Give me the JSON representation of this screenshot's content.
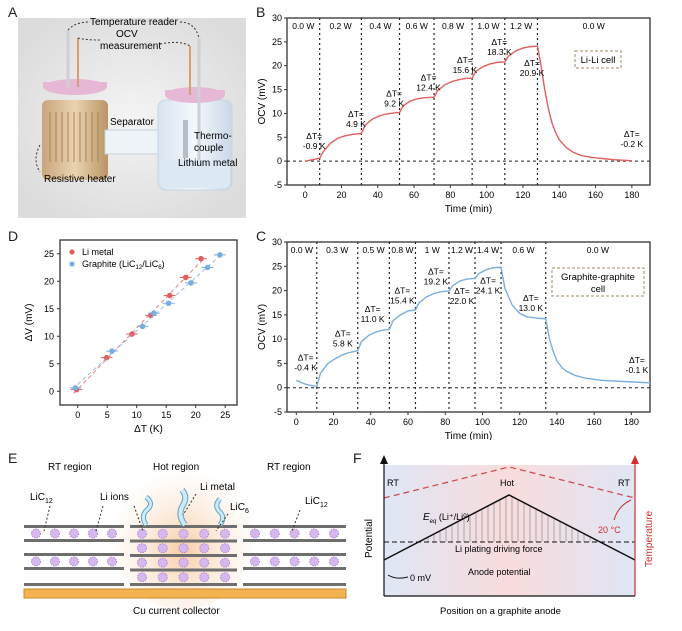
{
  "panels": {
    "A": {
      "letter": "A",
      "labels": {
        "temperature_reader": "Temperature reader",
        "ocv": "OCV",
        "measurement": "measurement",
        "separator": "Separator",
        "thermo": "Thermo-",
        "couple": "couple",
        "lithium_metal": "Lithium metal",
        "resistive_heater": "Resistive heater"
      }
    },
    "B": {
      "letter": "B"
    },
    "C": {
      "letter": "C"
    },
    "D": {
      "letter": "D"
    },
    "E": {
      "letter": "E",
      "labels": {
        "rt_left": "RT region",
        "hot": "Hot region",
        "rt_right": "RT region",
        "lic12_left": "LiC",
        "lic12_left_sub": "12",
        "li_ions": "Li ions",
        "li_metal": "Li metal",
        "lic6": "LiC",
        "lic6_sub": "6",
        "lic12_right": "LiC",
        "lic12_right_sub": "12",
        "collector": "Cu current collector"
      }
    },
    "F": {
      "letter": "F",
      "labels": {
        "rt_left": "RT",
        "hot": "Hot",
        "rt_right": "RT",
        "eeq": "E",
        "eeq_sub": "eq",
        "eeq_rest": " (Li⁺/Li⁰)",
        "driving_force": "Li plating driving force",
        "anode_potential": "Anode potential",
        "zero_mv": "0 mV",
        "twenty_c": "20 °C",
        "ylabel_left": "Potential",
        "ylabel_right": "Temperature",
        "xlabel": "Position on a graphite anode"
      }
    }
  },
  "colors": {
    "li_red": "#e06060",
    "graphite_blue": "#7aaee0",
    "temp_red": "#d03030",
    "axis": "#333333"
  },
  "chart_data": [
    {
      "id": "B",
      "type": "line",
      "title": "",
      "xlabel": "Time (min)",
      "ylabel": "OCV (mV)",
      "xlim": [
        -10,
        190
      ],
      "ylim": [
        -5,
        30
      ],
      "xticks": [
        0,
        20,
        40,
        60,
        80,
        100,
        120,
        140,
        160,
        180
      ],
      "yticks": [
        -5,
        0,
        5,
        10,
        15,
        20,
        25,
        30
      ],
      "boxed_label": "Li-Li cell",
      "phase_boundaries": [
        8,
        31,
        52,
        71,
        92,
        110,
        128
      ],
      "phase_labels": [
        "0.0 W",
        "0.2 W",
        "0.4 W",
        "0.6 W",
        "0.8 W",
        "1.0 W",
        "1.2 W",
        "0.0 W"
      ],
      "annotations": [
        {
          "text": "ΔT=",
          "value": "-0.9 K",
          "x": 5,
          "y": 2.5
        },
        {
          "text": "ΔT=",
          "value": "4.9 K",
          "x": 28,
          "y": 7.2
        },
        {
          "text": "ΔT=",
          "value": "9.2 K",
          "x": 49,
          "y": 11.5
        },
        {
          "text": "ΔT=",
          "value": "12.4 K",
          "x": 68,
          "y": 14.8
        },
        {
          "text": "ΔT=",
          "value": "15.6 K",
          "x": 88,
          "y": 18.5
        },
        {
          "text": "ΔT=",
          "value": "18.3 K",
          "x": 107,
          "y": 22.2
        },
        {
          "text": "ΔT=",
          "value": "20.9 K",
          "x": 125,
          "y": 17.8
        },
        {
          "text": "ΔT=",
          "value": "-0.2 K",
          "x": 180,
          "y": 3.0
        }
      ],
      "series": [
        {
          "name": "Li-Li cell",
          "color": "#e06060",
          "x": [
            0,
            4,
            8,
            10,
            14,
            18,
            22,
            26,
            31,
            33,
            37,
            41,
            45,
            49,
            52,
            54,
            58,
            62,
            66,
            71,
            73,
            77,
            81,
            85,
            88,
            92,
            94,
            98,
            102,
            106,
            110,
            112,
            116,
            120,
            124,
            128,
            130,
            132,
            134,
            136,
            138,
            140,
            144,
            148,
            152,
            156,
            160,
            165,
            170,
            175,
            180
          ],
          "y": [
            0.0,
            0.3,
            0.6,
            2.0,
            3.8,
            4.8,
            5.3,
            5.6,
            5.8,
            7.5,
            8.8,
            9.5,
            9.9,
            10.1,
            10.2,
            11.6,
            12.6,
            13.1,
            13.3,
            13.4,
            14.8,
            16.0,
            16.7,
            17.1,
            17.3,
            17.4,
            18.8,
            19.8,
            20.4,
            20.7,
            20.8,
            22.0,
            23.1,
            23.7,
            24.0,
            24.1,
            20.0,
            15.0,
            11.0,
            8.0,
            6.0,
            4.5,
            2.8,
            1.8,
            1.2,
            0.9,
            0.7,
            0.5,
            0.3,
            0.2,
            0.1
          ]
        }
      ]
    },
    {
      "id": "C",
      "type": "line",
      "title": "",
      "xlabel": "Time (min)",
      "ylabel": "OCV (mV)",
      "xlim": [
        -5,
        190
      ],
      "ylim": [
        -5,
        30
      ],
      "xticks": [
        0,
        20,
        40,
        60,
        80,
        100,
        120,
        140,
        160,
        180
      ],
      "yticks": [
        -5,
        0,
        5,
        10,
        15,
        20,
        25,
        30
      ],
      "boxed_label": "Graphite-graphite cell",
      "phase_boundaries": [
        11,
        33,
        50,
        64,
        82,
        96,
        110,
        134
      ],
      "phase_labels": [
        "0.0 W",
        "0.3 W",
        "0.5 W",
        "0.8 W",
        "1 W",
        "1.2 W",
        "1.4 W",
        "0.6 W",
        "0.0 W"
      ],
      "annotations": [
        {
          "text": "ΔT=",
          "value": "-0.4 K",
          "x": 5,
          "y": 3.5
        },
        {
          "text": "ΔT=",
          "value": "5.8 K",
          "x": 25,
          "y": 8.5
        },
        {
          "text": "ΔT=",
          "value": "11.0 K",
          "x": 41,
          "y": 13.5
        },
        {
          "text": "ΔT=",
          "value": "15.4 K",
          "x": 57,
          "y": 17.3
        },
        {
          "text": "ΔT=",
          "value": "19.2 K",
          "x": 75,
          "y": 21.3
        },
        {
          "text": "ΔT=",
          "value": "22.0 K",
          "x": 89,
          "y": 17.2
        },
        {
          "text": "ΔT=",
          "value": "24.1 K",
          "x": 103,
          "y": 19.4
        },
        {
          "text": "ΔT=",
          "value": "13.0 K",
          "x": 126,
          "y": 15.8
        },
        {
          "text": "ΔT=",
          "value": "-0.1 K",
          "x": 183,
          "y": 3.0
        }
      ],
      "series": [
        {
          "name": "Graphite-graphite cell",
          "color": "#7aaee0",
          "x": [
            0,
            3,
            6,
            9,
            11,
            13,
            17,
            21,
            25,
            29,
            33,
            35,
            39,
            43,
            47,
            50,
            52,
            56,
            60,
            64,
            66,
            70,
            74,
            78,
            82,
            84,
            88,
            92,
            96,
            98,
            102,
            106,
            110,
            112,
            116,
            120,
            124,
            130,
            134,
            136,
            138,
            140,
            143,
            146,
            150,
            155,
            160,
            165,
            170,
            175,
            180,
            185,
            190
          ],
          "y": [
            1.5,
            1.0,
            0.6,
            0.4,
            0.3,
            3.0,
            5.0,
            6.0,
            6.8,
            7.3,
            7.6,
            9.5,
            10.8,
            11.5,
            11.9,
            12.0,
            13.8,
            15.0,
            15.8,
            16.0,
            17.5,
            18.7,
            19.4,
            19.8,
            19.9,
            21.0,
            22.0,
            22.4,
            22.5,
            23.5,
            24.3,
            24.7,
            24.8,
            20.5,
            17.0,
            15.3,
            14.6,
            14.3,
            14.2,
            10.0,
            7.5,
            5.5,
            4.0,
            3.2,
            2.5,
            2.0,
            1.7,
            1.5,
            1.4,
            1.3,
            1.2,
            1.1,
            1.0
          ]
        }
      ]
    },
    {
      "id": "D",
      "type": "scatter",
      "title": "",
      "xlabel": "ΔT (K)",
      "ylabel": "ΔV (mV)",
      "xlim": [
        -3,
        27
      ],
      "ylim": [
        -2.5,
        27.5
      ],
      "xticks": [
        0,
        5,
        10,
        15,
        20,
        25
      ],
      "yticks": [
        0,
        5,
        10,
        15,
        20,
        25
      ],
      "legend": "top-left",
      "series": [
        {
          "name": "Li metal",
          "color": "#e06060",
          "x": [
            -0.2,
            4.9,
            9.2,
            12.4,
            15.6,
            18.3,
            20.9
          ],
          "y": [
            0.3,
            6.1,
            10.4,
            13.8,
            17.4,
            20.7,
            24.1
          ],
          "xerr": 1.0
        },
        {
          "name": "Graphite (LiC12/LiC6)",
          "color": "#7aaee0",
          "x": [
            -0.4,
            5.8,
            11.0,
            12.9,
            15.4,
            19.2,
            22.0,
            24.1
          ],
          "y": [
            0.6,
            7.3,
            11.8,
            14.2,
            16.0,
            19.7,
            22.5,
            24.8
          ],
          "xerr": 1.0
        }
      ]
    }
  ]
}
